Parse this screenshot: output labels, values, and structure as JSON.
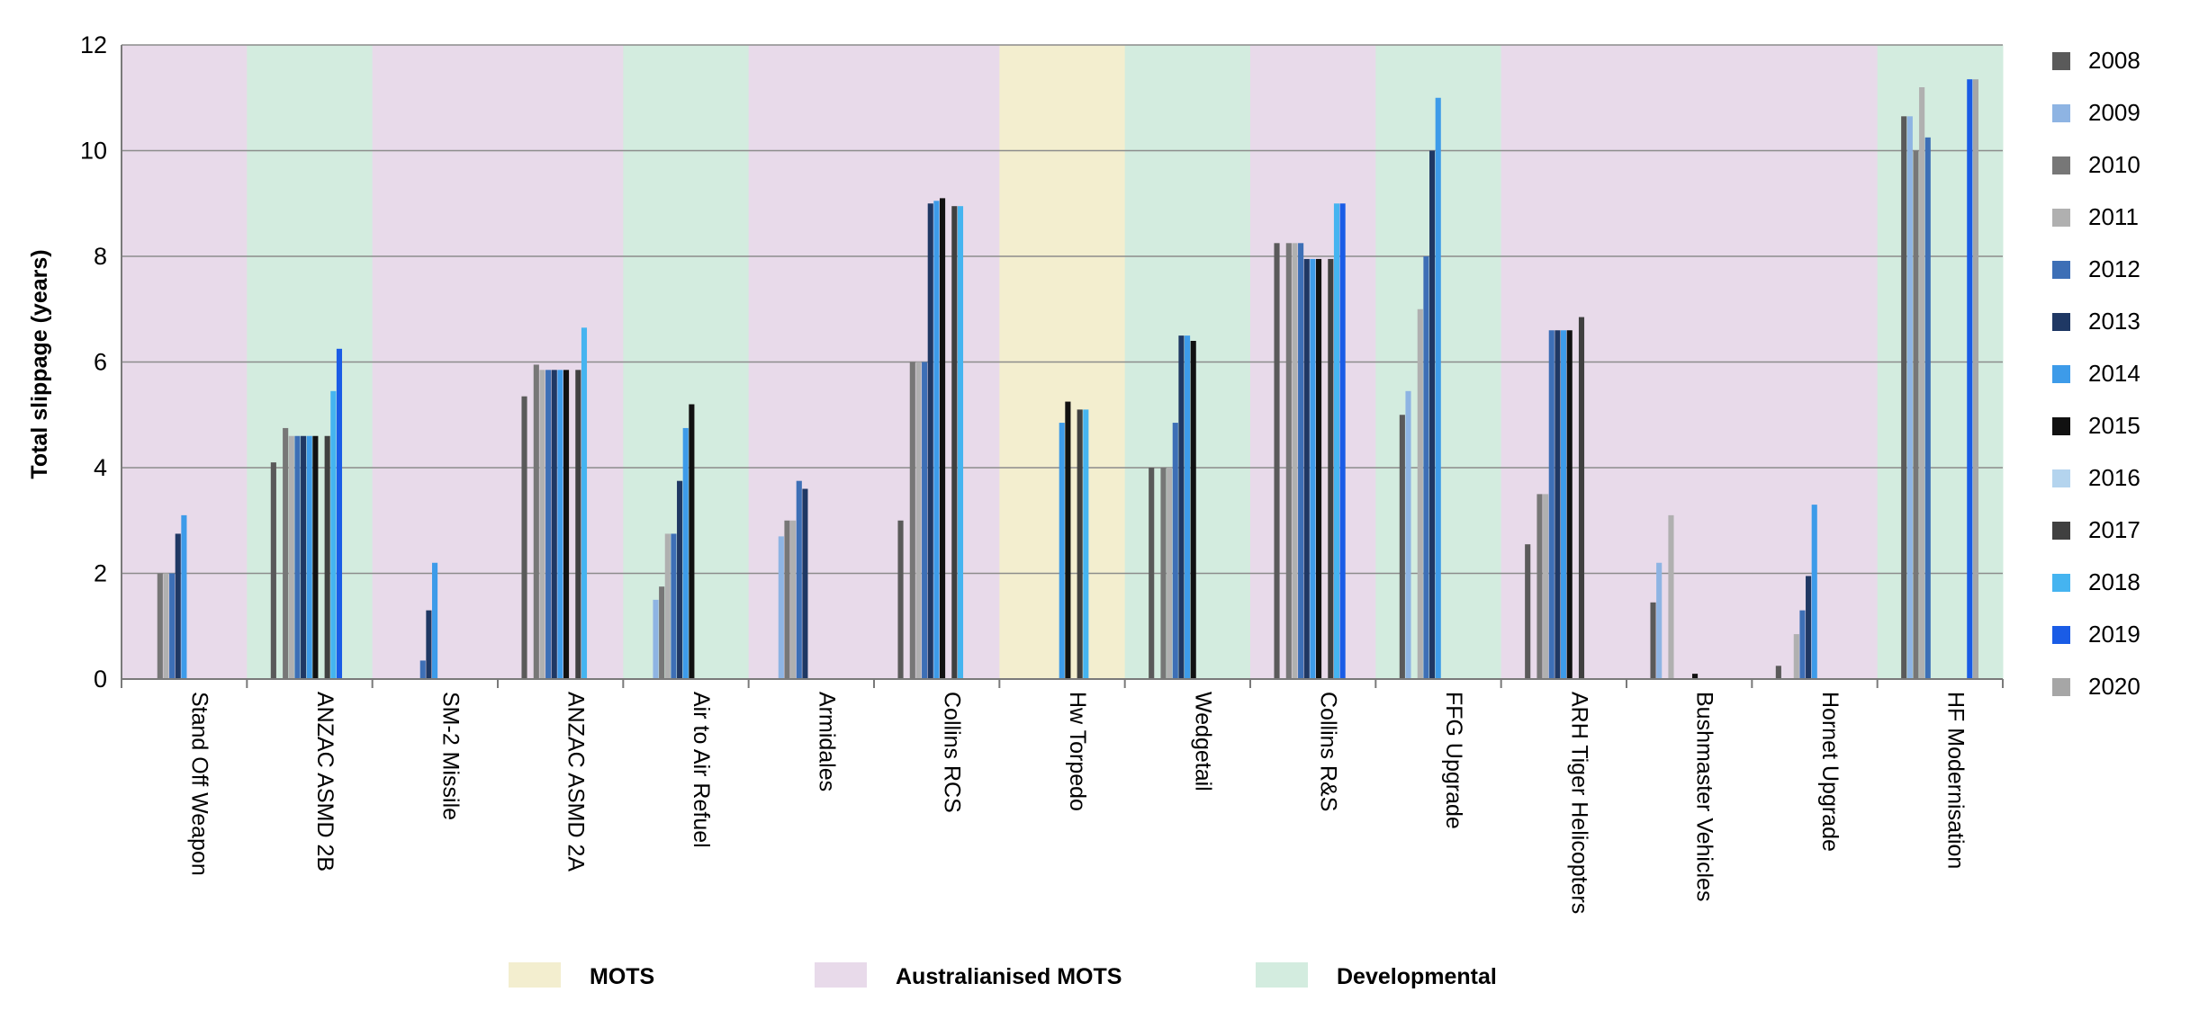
{
  "chart_data": {
    "type": "bar",
    "title": "",
    "xlabel": "",
    "ylabel": "Total slippage (years)",
    "ylim": [
      0,
      12
    ],
    "yticks": [
      "0",
      "2",
      "4",
      "6",
      "8",
      "10",
      "12"
    ],
    "grid": true,
    "legend_position": "right",
    "categories": [
      "Stand Off Weapon",
      "ANZAC ASMD 2B",
      "SM-2 Missile",
      "ANZAC ASMD 2A",
      "Air to Air Refuel",
      "Armidales",
      "Collins RCS",
      "Hw Torpedo",
      "Wedgetail",
      "Collins R&S",
      "FFG Upgrade",
      "ARH Tiger Helicopters",
      "Bushmaster Vehicles",
      "Hornet Upgrade",
      "HF Modernisation"
    ],
    "category_type": [
      "Australianised MOTS",
      "Developmental",
      "Australianised MOTS",
      "Australianised MOTS",
      "Developmental",
      "Australianised MOTS",
      "Australianised MOTS",
      "MOTS",
      "Developmental",
      "Australianised MOTS",
      "Developmental",
      "Australianised MOTS",
      "Australianised MOTS",
      "Australianised MOTS",
      "Developmental"
    ],
    "category_legend": [
      {
        "label": "MOTS",
        "color": "#f3eecf"
      },
      {
        "label": "Australianised MOTS",
        "color": "#e8daea"
      },
      {
        "label": "Developmental",
        "color": "#d3ecdf"
      }
    ],
    "series": [
      {
        "name": "2008",
        "color": "#5a5a5a",
        "values": [
          null,
          4.1,
          null,
          5.35,
          null,
          null,
          3.0,
          null,
          4.0,
          8.25,
          5.0,
          2.55,
          1.45,
          0.25,
          10.65
        ]
      },
      {
        "name": "2009",
        "color": "#8eb4e3",
        "values": [
          null,
          null,
          null,
          null,
          1.5,
          2.7,
          null,
          null,
          null,
          null,
          5.45,
          null,
          2.2,
          null,
          10.65
        ]
      },
      {
        "name": "2010",
        "color": "#777777",
        "values": [
          2.0,
          4.75,
          null,
          5.95,
          1.75,
          3.0,
          6.0,
          null,
          4.0,
          8.25,
          null,
          3.5,
          null,
          null,
          10.0
        ]
      },
      {
        "name": "2011",
        "color": "#b0b0b0",
        "values": [
          2.0,
          4.6,
          null,
          5.85,
          2.75,
          3.0,
          6.0,
          null,
          4.0,
          8.25,
          7.0,
          3.5,
          3.1,
          0.85,
          11.2
        ]
      },
      {
        "name": "2012",
        "color": "#3d6fb6",
        "values": [
          2.0,
          4.6,
          0.35,
          5.85,
          2.75,
          3.75,
          6.0,
          null,
          4.85,
          8.25,
          8.0,
          6.6,
          null,
          1.3,
          10.25
        ]
      },
      {
        "name": "2013",
        "color": "#1f3864",
        "values": [
          2.75,
          4.6,
          1.3,
          5.85,
          3.75,
          3.6,
          9.0,
          null,
          6.5,
          7.95,
          10.0,
          6.6,
          null,
          1.95,
          null
        ]
      },
      {
        "name": "2014",
        "color": "#3d9be9",
        "values": [
          3.1,
          4.6,
          2.2,
          5.85,
          4.75,
          null,
          9.05,
          4.85,
          6.5,
          7.95,
          11.0,
          6.6,
          null,
          3.3,
          null
        ]
      },
      {
        "name": "2015",
        "color": "#111111",
        "values": [
          null,
          4.6,
          null,
          5.85,
          5.2,
          null,
          9.1,
          5.25,
          6.4,
          7.95,
          null,
          6.6,
          0.1,
          null,
          null
        ]
      },
      {
        "name": "2016",
        "color": "#b4d4ee",
        "values": [
          null,
          null,
          null,
          null,
          null,
          null,
          null,
          null,
          null,
          null,
          null,
          null,
          null,
          null,
          null
        ]
      },
      {
        "name": "2017",
        "color": "#404040",
        "values": [
          null,
          4.6,
          null,
          5.85,
          null,
          null,
          8.95,
          5.1,
          null,
          7.95,
          null,
          6.85,
          null,
          null,
          null
        ]
      },
      {
        "name": "2018",
        "color": "#45b4f0",
        "values": [
          null,
          5.45,
          null,
          6.65,
          null,
          null,
          8.95,
          5.1,
          null,
          9.0,
          null,
          null,
          null,
          null,
          null
        ]
      },
      {
        "name": "2019",
        "color": "#1a5ce6",
        "values": [
          null,
          6.25,
          null,
          null,
          null,
          null,
          null,
          null,
          null,
          9.0,
          null,
          null,
          null,
          null,
          11.35
        ]
      },
      {
        "name": "2020",
        "color": "#a6a6a6",
        "values": [
          null,
          null,
          null,
          null,
          null,
          null,
          null,
          null,
          null,
          null,
          null,
          null,
          null,
          null,
          11.35
        ]
      }
    ]
  }
}
